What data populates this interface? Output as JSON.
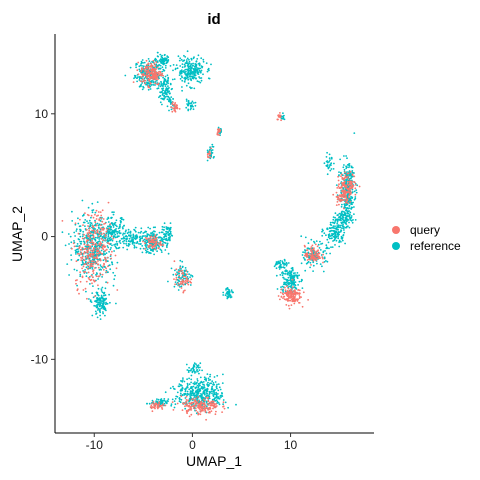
{
  "chart_data": {
    "type": "scatter",
    "title": "id",
    "xlabel": "UMAP_1",
    "ylabel": "UMAP_2",
    "xlim": [
      -14,
      18.5
    ],
    "ylim": [
      -16,
      16.5
    ],
    "x_ticks": [
      -10,
      0,
      10
    ],
    "y_ticks": [
      -10,
      0,
      10
    ],
    "x_tick_labels": [
      "-10",
      "0",
      "10"
    ],
    "y_tick_labels": [
      "-10",
      "0",
      "10"
    ],
    "grid": false,
    "legend_position": "right",
    "series": [
      {
        "name": "query",
        "color": "#F8766D",
        "clusters": [
          {
            "x": -4.2,
            "y": 13.3,
            "sx": 0.9,
            "sy": 0.8,
            "n": 160
          },
          {
            "x": -10.2,
            "y": -1.5,
            "sx": 1.5,
            "sy": 2.2,
            "n": 220
          },
          {
            "x": -9.5,
            "y": 0.8,
            "sx": 1.0,
            "sy": 1.2,
            "n": 60
          },
          {
            "x": -4.0,
            "y": -0.5,
            "sx": 0.7,
            "sy": 0.5,
            "n": 60
          },
          {
            "x": -1.0,
            "y": -3.5,
            "sx": 0.7,
            "sy": 0.7,
            "n": 50
          },
          {
            "x": -1.8,
            "y": 10.5,
            "sx": 0.3,
            "sy": 0.4,
            "n": 30
          },
          {
            "x": 10.0,
            "y": -4.8,
            "sx": 0.9,
            "sy": 0.6,
            "n": 140
          },
          {
            "x": 12.3,
            "y": -1.5,
            "sx": 0.7,
            "sy": 0.6,
            "n": 90
          },
          {
            "x": 15.8,
            "y": 4.2,
            "sx": 0.8,
            "sy": 0.8,
            "n": 120
          },
          {
            "x": 15.2,
            "y": 3.2,
            "sx": 0.6,
            "sy": 0.5,
            "n": 50
          },
          {
            "x": 0.8,
            "y": -13.8,
            "sx": 1.6,
            "sy": 0.6,
            "n": 170
          },
          {
            "x": -3.6,
            "y": -13.8,
            "sx": 0.6,
            "sy": 0.3,
            "n": 40
          },
          {
            "x": 2.7,
            "y": 8.6,
            "sx": 0.2,
            "sy": 0.2,
            "n": 15
          },
          {
            "x": 1.8,
            "y": 6.7,
            "sx": 0.2,
            "sy": 0.3,
            "n": 12
          },
          {
            "x": 8.9,
            "y": 9.7,
            "sx": 0.2,
            "sy": 0.3,
            "n": 14
          }
        ]
      },
      {
        "name": "reference",
        "color": "#00BFC4",
        "clusters": [
          {
            "x": -4.3,
            "y": 13.2,
            "sx": 1.3,
            "sy": 1.0,
            "n": 260
          },
          {
            "x": -2.8,
            "y": 11.9,
            "sx": 0.5,
            "sy": 0.8,
            "n": 80
          },
          {
            "x": -0.2,
            "y": 13.5,
            "sx": 1.2,
            "sy": 0.9,
            "n": 230
          },
          {
            "x": -3.0,
            "y": 14.3,
            "sx": 0.6,
            "sy": 0.4,
            "n": 60
          },
          {
            "x": -2.2,
            "y": 10.8,
            "sx": 0.3,
            "sy": 0.5,
            "n": 30
          },
          {
            "x": -0.3,
            "y": 10.7,
            "sx": 0.5,
            "sy": 0.3,
            "n": 30
          },
          {
            "x": -10.0,
            "y": -0.8,
            "sx": 1.8,
            "sy": 2.2,
            "n": 460
          },
          {
            "x": -8.0,
            "y": 0.3,
            "sx": 1.0,
            "sy": 1.0,
            "n": 140
          },
          {
            "x": -9.3,
            "y": -5.5,
            "sx": 0.7,
            "sy": 0.9,
            "n": 130
          },
          {
            "x": -4.0,
            "y": -0.4,
            "sx": 1.1,
            "sy": 0.8,
            "n": 170
          },
          {
            "x": -6.0,
            "y": -0.2,
            "sx": 0.9,
            "sy": 0.6,
            "n": 90
          },
          {
            "x": -2.5,
            "y": 0.2,
            "sx": 0.5,
            "sy": 0.6,
            "n": 60
          },
          {
            "x": -1.0,
            "y": -3.2,
            "sx": 0.8,
            "sy": 0.8,
            "n": 80
          },
          {
            "x": 1.8,
            "y": 6.8,
            "sx": 0.3,
            "sy": 0.5,
            "n": 30
          },
          {
            "x": 2.8,
            "y": 8.6,
            "sx": 0.2,
            "sy": 0.2,
            "n": 15
          },
          {
            "x": 3.7,
            "y": -4.6,
            "sx": 0.4,
            "sy": 0.4,
            "n": 40
          },
          {
            "x": 9.9,
            "y": -3.5,
            "sx": 0.8,
            "sy": 1.0,
            "n": 160
          },
          {
            "x": 9.0,
            "y": -2.3,
            "sx": 0.5,
            "sy": 0.4,
            "n": 40
          },
          {
            "x": 12.5,
            "y": -1.5,
            "sx": 1.0,
            "sy": 0.8,
            "n": 120
          },
          {
            "x": 14.5,
            "y": 0.3,
            "sx": 0.9,
            "sy": 0.8,
            "n": 130
          },
          {
            "x": 15.8,
            "y": 3.8,
            "sx": 0.6,
            "sy": 1.8,
            "n": 320
          },
          {
            "x": 15.3,
            "y": 1.5,
            "sx": 0.7,
            "sy": 0.6,
            "n": 90
          },
          {
            "x": 14.0,
            "y": 6.0,
            "sx": 0.4,
            "sy": 0.6,
            "n": 30
          },
          {
            "x": 0.8,
            "y": -12.8,
            "sx": 2.0,
            "sy": 1.1,
            "n": 420
          },
          {
            "x": -3.5,
            "y": -13.6,
            "sx": 0.8,
            "sy": 0.3,
            "n": 60
          },
          {
            "x": 0.2,
            "y": -10.8,
            "sx": 0.5,
            "sy": 0.4,
            "n": 40
          },
          {
            "x": 9.2,
            "y": 9.8,
            "sx": 0.2,
            "sy": 0.3,
            "n": 10
          }
        ]
      }
    ]
  }
}
